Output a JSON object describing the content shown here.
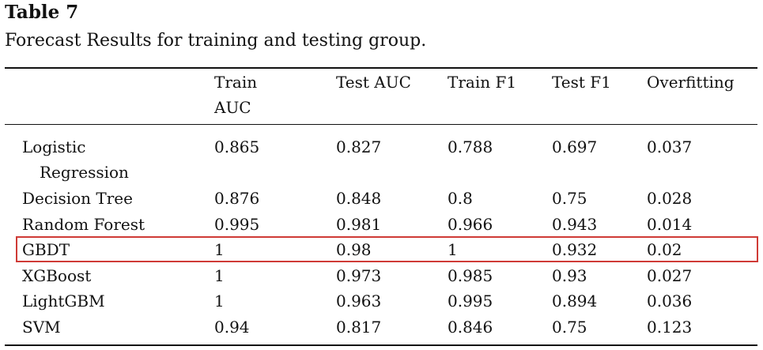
{
  "title": "Table 7",
  "caption": "Forecast Results for training and testing group.",
  "header": [
    "",
    "Train AUC",
    "Test AUC",
    "Train F1",
    "Test F1",
    "Overfitting"
  ],
  "rows": [
    {
      "model": "Logistic Regression",
      "model_line1": "Logistic",
      "model_line2": "Regression",
      "train_auc": "0.865",
      "test_auc": "0.827",
      "train_f1": "0.788",
      "test_f1": "0.697",
      "overfitting": "0.037"
    },
    {
      "model": "Decision Tree",
      "train_auc": "0.876",
      "test_auc": "0.848",
      "train_f1": "0.8",
      "test_f1": "0.75",
      "overfitting": "0.028"
    },
    {
      "model": "Random Forest",
      "train_auc": "0.995",
      "test_auc": "0.981",
      "train_f1": "0.966",
      "test_f1": "0.943",
      "overfitting": "0.014"
    },
    {
      "model": "GBDT",
      "train_auc": "1",
      "test_auc": "0.98",
      "train_f1": "1",
      "test_f1": "0.932",
      "overfitting": "0.02"
    },
    {
      "model": "XGBoost",
      "train_auc": "1",
      "test_auc": "0.973",
      "train_f1": "0.985",
      "test_f1": "0.93",
      "overfitting": "0.027"
    },
    {
      "model": "LightGBM",
      "train_auc": "1",
      "test_auc": "0.963",
      "train_f1": "0.995",
      "test_f1": "0.894",
      "overfitting": "0.036"
    },
    {
      "model": "SVM",
      "train_auc": "0.94",
      "test_auc": "0.817",
      "train_f1": "0.846",
      "test_f1": "0.75",
      "overfitting": "0.123"
    }
  ],
  "highlighted_row": "GBDT",
  "highlight_color": "#cf3b36"
}
